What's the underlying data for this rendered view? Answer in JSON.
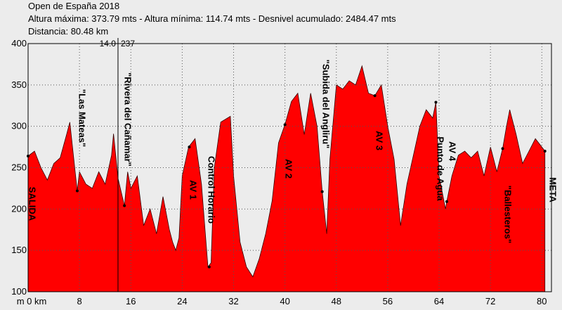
{
  "chart_data": {
    "type": "area",
    "title": "Open de España 2018",
    "subtitle": "Altura máxima: 373.79 mts - Altura mínima: 114.74 mts - Desnivel acumulado: 2484.47 mts",
    "distance": "Distancia: 80.48 km",
    "color": "#ff0000",
    "x": [
      0,
      1,
      2,
      3,
      4,
      5,
      6,
      6.5,
      7.65,
      8,
      9,
      10,
      11,
      12,
      13,
      13.3,
      14,
      15,
      15.5,
      16,
      17,
      18,
      19,
      20,
      21,
      22,
      22.5,
      23,
      23.5,
      24,
      25,
      26,
      27,
      28,
      28.5,
      29,
      30,
      31.5,
      32,
      33,
      34,
      35,
      36,
      37,
      38,
      39,
      40,
      41,
      42,
      43,
      44,
      45,
      45.8,
      46.5,
      47,
      48,
      49,
      50,
      51,
      52,
      53,
      54,
      55,
      56,
      57,
      58,
      59,
      60,
      61,
      62,
      63,
      63.5,
      64,
      65,
      65.2,
      66,
      67,
      68,
      69,
      70,
      71,
      72,
      73,
      73.9,
      74.5,
      75,
      76,
      77,
      78,
      79,
      80,
      80.48
    ],
    "values": [
      264,
      270,
      250,
      235,
      255,
      262,
      290,
      305,
      222,
      245,
      230,
      225,
      245,
      230,
      265,
      291,
      237,
      204,
      245,
      225,
      240,
      180,
      200,
      170,
      215,
      175,
      160,
      150,
      165,
      240,
      275,
      285,
      230,
      130,
      135,
      250,
      305,
      312,
      240,
      160,
      130,
      118,
      140,
      170,
      210,
      280,
      302,
      330,
      340,
      290,
      340,
      300,
      221,
      170,
      260,
      350,
      345,
      355,
      350,
      373,
      340,
      337,
      350,
      300,
      260,
      180,
      230,
      265,
      300,
      320,
      310,
      329,
      240,
      200,
      209,
      240,
      265,
      270,
      262,
      270,
      240,
      275,
      245,
      273,
      300,
      320,
      290,
      255,
      270,
      285,
      275,
      270
    ],
    "xlim": [
      0,
      81.5
    ],
    "ylim": [
      100,
      400
    ],
    "xticks": [
      {
        "value": 0,
        "label": "m 0 km"
      },
      8,
      16,
      24,
      32,
      40,
      48,
      56,
      64,
      72,
      80
    ],
    "yticks": [
      100,
      150,
      200,
      250,
      300,
      350,
      400
    ],
    "grid": true,
    "cursor": {
      "x": {
        "value": 14,
        "label": "14.0"
      },
      "y": 237
    },
    "annotations": [
      {
        "text": "SALIDA",
        "x": 0,
        "y": 264
      },
      {
        "text": "\"Las Mateas\"",
        "x": 7.65,
        "y": 222
      },
      {
        "text": "\"Rivera del Cañamar\"",
        "x": 15,
        "y": 204
      },
      {
        "text": "AV 1",
        "x": 25.1,
        "y": 275
      },
      {
        "text": "Control Horario",
        "x": 28.2,
        "y": 130
      },
      {
        "text": "AV 2",
        "x": 40,
        "y": 302
      },
      {
        "text": "\"Subida del Angliru\"",
        "x": 45.8,
        "y": 221
      },
      {
        "text": "AV 3",
        "x": 54,
        "y": 337
      },
      {
        "text": "Punto de Agua",
        "x": 63.5,
        "y": 329
      },
      {
        "text": "AV 4",
        "x": 65.2,
        "y": 209
      },
      {
        "text": "\"Ballesteros\"",
        "x": 73.9,
        "y": 273
      },
      {
        "text": "META",
        "x": 80.48,
        "y": 270
      }
    ]
  }
}
